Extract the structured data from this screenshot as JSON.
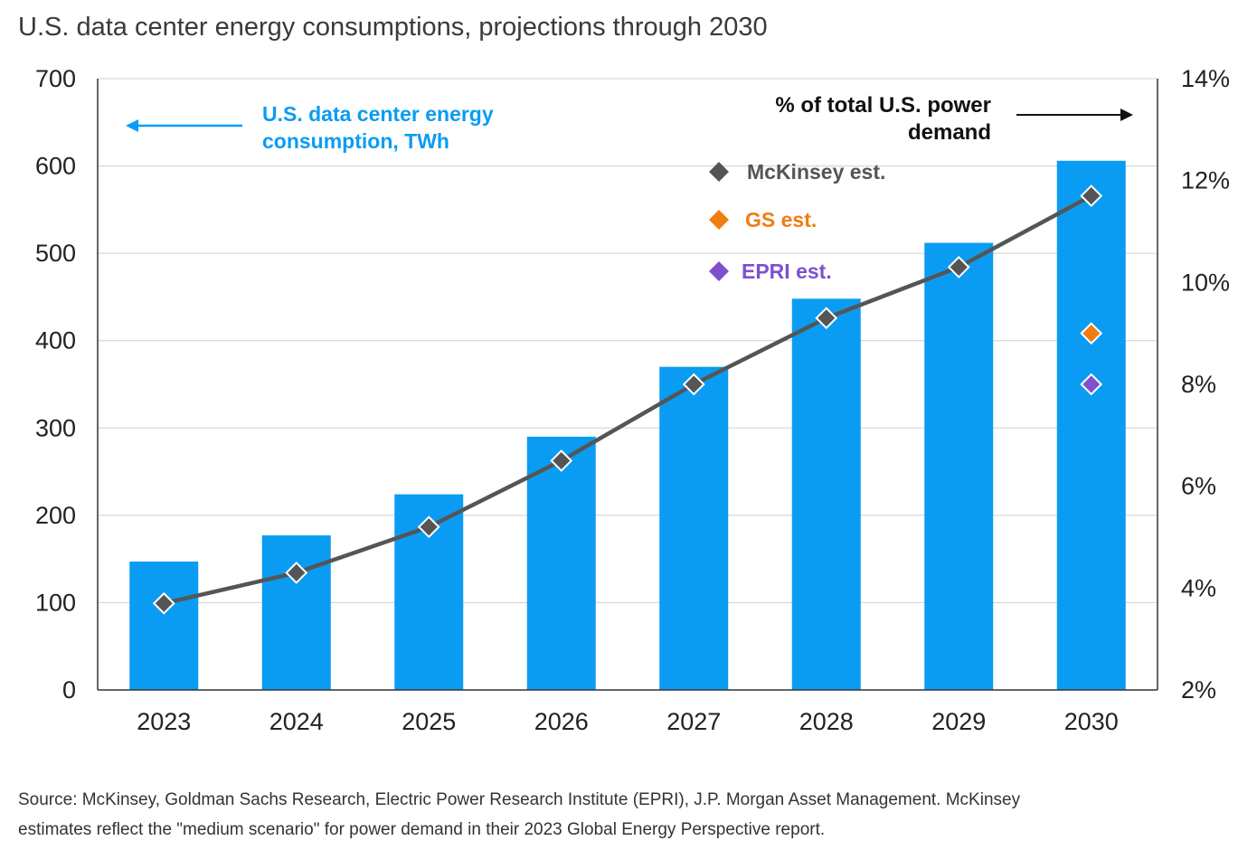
{
  "chart_data": {
    "type": "bar",
    "title": "U.S. data center energy consumptions, projections through 2030",
    "categories": [
      "2023",
      "2024",
      "2025",
      "2026",
      "2027",
      "2028",
      "2029",
      "2030"
    ],
    "bar_series": {
      "name": "U.S. data center energy consumption, TWh",
      "values": [
        147,
        177,
        224,
        290,
        370,
        448,
        512,
        606
      ],
      "color": "#0a9cf2",
      "axis": "left"
    },
    "line_series": {
      "name": "McKinsey est.",
      "values": [
        3.7,
        4.3,
        5.2,
        6.5,
        8.0,
        9.3,
        10.3,
        11.7
      ],
      "color": "#555555",
      "marker": "diamond",
      "axis": "right"
    },
    "point_series": [
      {
        "name": "GS est.",
        "category": "2030",
        "value": 9.0,
        "color": "#f07d12",
        "marker": "diamond"
      },
      {
        "name": "EPRI est.",
        "category": "2030",
        "value": 8.0,
        "color": "#7f4fcf",
        "marker": "diamond"
      }
    ],
    "y_left": {
      "ylim": [
        0,
        700
      ],
      "ticks": [
        0,
        100,
        200,
        300,
        400,
        500,
        600,
        700
      ],
      "tick_labels": [
        "0",
        "100",
        "200",
        "300",
        "400",
        "500",
        "600",
        "700"
      ]
    },
    "y_right": {
      "ylim": [
        2,
        14
      ],
      "ticks": [
        2,
        4,
        6,
        8,
        10,
        12,
        14
      ],
      "tick_labels": [
        "2%",
        "4%",
        "6%",
        "8%",
        "10%",
        "12%",
        "14%"
      ]
    },
    "grid": true,
    "legend_position": "top-right",
    "annotations": {
      "left_label": [
        "U.S. data center energy",
        "consumption, TWh"
      ],
      "right_label": [
        "% of total U.S. power",
        "demand"
      ],
      "left_color": "#0a9cf2",
      "right_color": "#111111"
    }
  },
  "source_lines": [
    "Source: McKinsey, Goldman Sachs Research, Electric Power Research Institute (EPRI), J.P. Morgan Asset Management. McKinsey",
    "estimates reflect the \"medium scenario\" for power demand in their 2023 Global Energy Perspective report."
  ]
}
